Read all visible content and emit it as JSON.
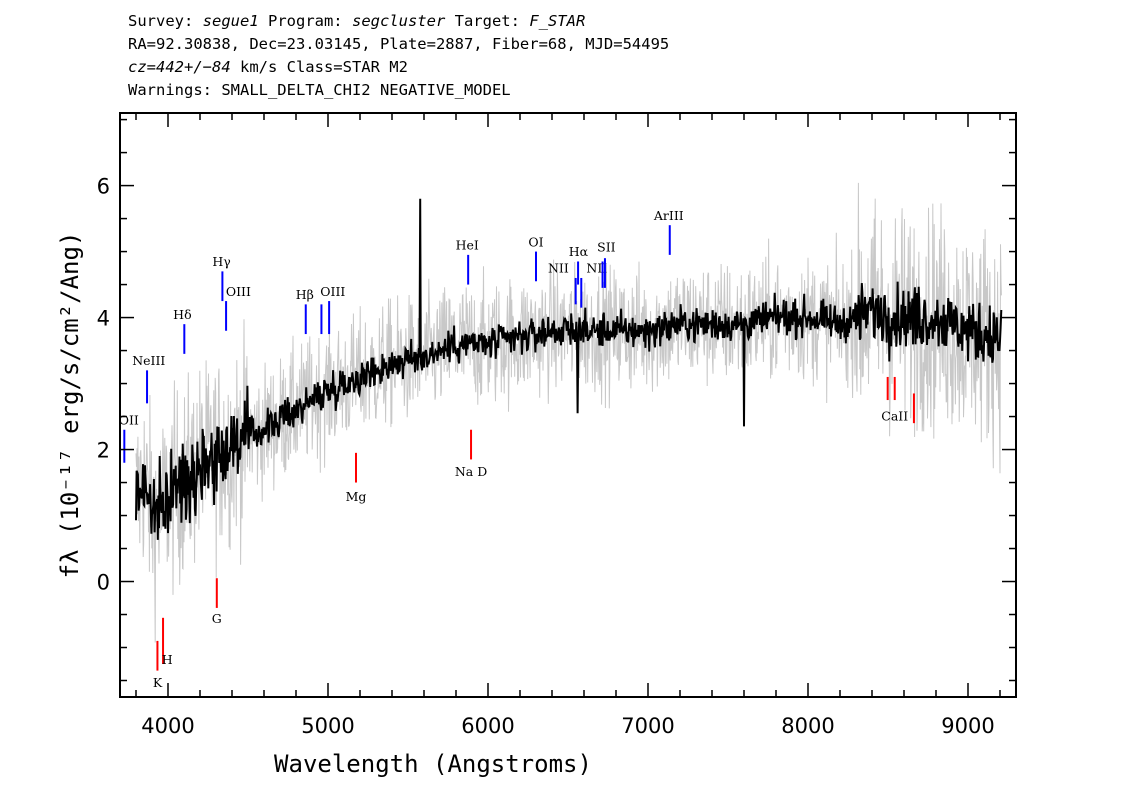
{
  "header": {
    "survey_prefix": "Survey: ",
    "survey": "segue1",
    "program_prefix": " Program: ",
    "program": "segcluster",
    "target_prefix": " Target: ",
    "target": "F_STAR",
    "line2": "RA=92.30838, Dec=23.03145, Plate=2887, Fiber=68, MJD=54495",
    "cz_value": "cz=442+/−84",
    "cz_rest": " km/s Class=STAR M2",
    "line4": "Warnings: SMALL_DELTA_CHI2 NEGATIVE_MODEL"
  },
  "chart_data": {
    "type": "line",
    "title": "",
    "xlabel": "Wavelength (Angstroms)",
    "ylabel": "fλ (10⁻¹⁷ erg/s/cm²/Ang)",
    "xlim": [
      3700,
      9300
    ],
    "ylim": [
      -1.75,
      7.1
    ],
    "x_ticks": [
      4000,
      5000,
      6000,
      7000,
      8000,
      9000
    ],
    "y_ticks": [
      0,
      2,
      4,
      6
    ],
    "grid": false,
    "colors": {
      "spectrum": "#000000",
      "error_band": "#c8c8c8",
      "emission": "#0000ff",
      "absorption": "#ff0000"
    },
    "series": [
      {
        "style": "gray-noise-envelope",
        "x": [
          3800,
          3850,
          3900,
          3950,
          4000,
          4100,
          4200,
          4300,
          4400,
          4500,
          4600,
          4800,
          5000,
          5200,
          5400,
          5600,
          5800,
          6000,
          6200,
          6400,
          6600,
          6800,
          7000,
          7200,
          7400,
          7600,
          7800,
          8000,
          8200,
          8400,
          8600,
          8800,
          9000,
          9200
        ],
        "values": [
          1.2,
          1.6,
          1.0,
          1.0,
          1.3,
          1.5,
          1.8,
          1.9,
          2.1,
          2.2,
          2.3,
          2.6,
          2.9,
          3.1,
          3.3,
          3.4,
          3.6,
          3.6,
          3.7,
          3.8,
          3.8,
          3.8,
          3.8,
          3.9,
          3.9,
          3.9,
          4.0,
          4.0,
          3.9,
          4.1,
          4.0,
          4.0,
          3.8,
          3.7
        ]
      },
      {
        "style": "black-flux-line",
        "x": [
          3800,
          3850,
          3900,
          3950,
          4000,
          4100,
          4200,
          4300,
          4400,
          4500,
          4600,
          4800,
          5000,
          5200,
          5400,
          5600,
          5800,
          6000,
          6200,
          6400,
          6600,
          6800,
          7000,
          7200,
          7400,
          7600,
          7800,
          8000,
          8200,
          8400,
          8600,
          8800,
          9000,
          9200
        ],
        "values": [
          1.3,
          1.5,
          1.1,
          1.0,
          1.3,
          1.5,
          1.8,
          1.9,
          2.1,
          2.2,
          2.3,
          2.6,
          2.9,
          3.1,
          3.3,
          3.4,
          3.6,
          3.6,
          3.7,
          3.8,
          3.8,
          3.8,
          3.8,
          3.9,
          3.9,
          3.9,
          4.0,
          4.0,
          3.9,
          4.1,
          4.0,
          4.0,
          3.8,
          3.7
        ]
      }
    ],
    "emission_lines": [
      {
        "label": "OII",
        "x": 3727,
        "y0": 1.8,
        "y1": 2.3,
        "lx": 3755,
        "ly": 2.38
      },
      {
        "label": "NeIII",
        "x": 3869,
        "y0": 2.7,
        "y1": 3.2,
        "lx": 3880,
        "ly": 3.28
      },
      {
        "label": "Hδ",
        "x": 4102,
        "y0": 3.45,
        "y1": 3.9,
        "lx": 4090,
        "ly": 3.98
      },
      {
        "label": "Hγ",
        "x": 4340,
        "y0": 4.25,
        "y1": 4.7,
        "lx": 4335,
        "ly": 4.78
      },
      {
        "label": "OIII",
        "x": 4363,
        "y0": 3.8,
        "y1": 4.25,
        "lx": 4440,
        "ly": 4.33
      },
      {
        "label": "Hβ",
        "x": 4861,
        "y0": 3.75,
        "y1": 4.2,
        "lx": 4855,
        "ly": 4.28
      },
      {
        "label": "OIII",
        "x": 4959,
        "y0": 3.75,
        "y1": 4.2,
        "lx": 5030,
        "ly": 4.33
      },
      {
        "label": "OIII",
        "x": 5007,
        "y0": 3.75,
        "y1": 4.25,
        "lx": null,
        "ly": null
      },
      {
        "label": "HeI",
        "x": 5876,
        "y0": 4.5,
        "y1": 4.95,
        "lx": 5870,
        "ly": 5.03
      },
      {
        "label": "OI",
        "x": 6300,
        "y0": 4.55,
        "y1": 5.0,
        "lx": 6300,
        "ly": 5.08
      },
      {
        "label": "NII",
        "x": 6548,
        "y0": 4.2,
        "y1": 4.6,
        "lx": 6440,
        "ly": 4.68
      },
      {
        "label": "Hα",
        "x": 6563,
        "y0": 4.5,
        "y1": 4.85,
        "lx": 6565,
        "ly": 4.93
      },
      {
        "label": "NII",
        "x": 6583,
        "y0": 4.15,
        "y1": 4.6,
        "lx": 6680,
        "ly": 4.68
      },
      {
        "label": "SII",
        "x": 6716,
        "y0": 4.45,
        "y1": 4.85,
        "lx": 6740,
        "ly": 5.0
      },
      {
        "label": "SII",
        "x": 6731,
        "y0": 4.45,
        "y1": 4.9,
        "lx": null,
        "ly": null
      },
      {
        "label": "ArIII",
        "x": 7136,
        "y0": 4.95,
        "y1": 5.4,
        "lx": 7130,
        "ly": 5.48
      }
    ],
    "absorption_lines": [
      {
        "label": "K",
        "x": 3934,
        "y0": -1.35,
        "y1": -0.9,
        "lx": 3935,
        "ly": -1.6
      },
      {
        "label": "H",
        "x": 3969,
        "y0": -1.25,
        "y1": -0.55,
        "lx": 3995,
        "ly": -1.25
      },
      {
        "label": "G",
        "x": 4305,
        "y0": -0.4,
        "y1": 0.05,
        "lx": 4305,
        "ly": -0.63
      },
      {
        "label": "Mg",
        "x": 5175,
        "y0": 1.5,
        "y1": 1.95,
        "lx": 5175,
        "ly": 1.22
      },
      {
        "label": "Na D",
        "x": 5894,
        "y0": 1.85,
        "y1": 2.3,
        "lx": 5894,
        "ly": 1.6
      },
      {
        "label": "CaII",
        "x": 8498,
        "y0": 2.75,
        "y1": 3.1,
        "lx": 8542,
        "ly": 2.44
      },
      {
        "label": "CaII",
        "x": 8542,
        "y0": 2.75,
        "y1": 3.1,
        "lx": null,
        "ly": null
      },
      {
        "label": "CaII",
        "x": 8662,
        "y0": 2.4,
        "y1": 2.85,
        "lx": null,
        "ly": null
      }
    ]
  }
}
